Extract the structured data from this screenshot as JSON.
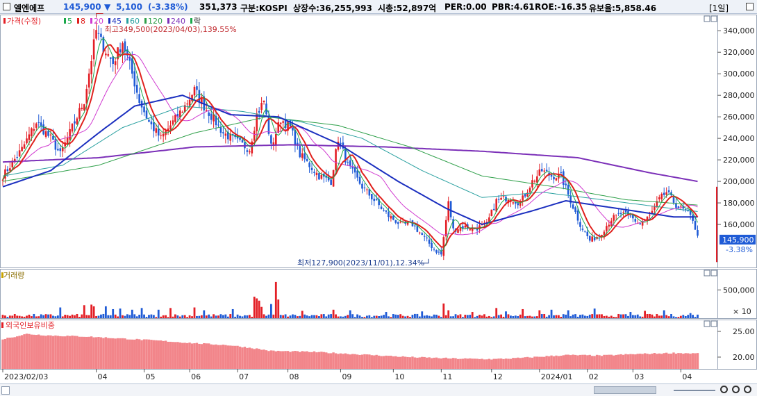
{
  "header": {
    "name": "엘엔에프",
    "price": "145,900",
    "change_arrow": "▼",
    "change": "5,100",
    "change_pct": "(-3.38%)",
    "volume": "351,373",
    "market": "구분:KOSPI",
    "shares": "상장수:36,255,993",
    "market_cap": "시총:52,897억",
    "per": "PER:0.00",
    "pbr": "PBR:4.61",
    "roe": "ROE:-16.35",
    "float_rate": "유보율:5,858.46",
    "period": "[1일]"
  },
  "colors": {
    "up": "#e31f26",
    "down": "#1f5bd6",
    "ma5": "#1aa84a",
    "ma8": "#e0201c",
    "ma20": "#d03ad0",
    "ma45": "#1b2fbf",
    "ma60": "#29a0a0",
    "ma120": "#2fa04a",
    "ma240": "#7b2fb8",
    "foreign": "#f2858a"
  },
  "chart_data": [
    {
      "type": "candlestick",
      "legend": {
        "title": "가격(수정)",
        "ma": [
          "5",
          "8",
          "20",
          "45",
          "60",
          "120",
          "240"
        ],
        "extra": "락"
      },
      "annotations": {
        "high": "최고349,500(2023/04/03),139.55%",
        "low": "최저127,900(2023/11/01),12.34%"
      },
      "last_price_label": "145,900",
      "last_change_label": "-3.38%",
      "ylim": [
        120000,
        355000
      ],
      "y_ticks": [
        160000,
        180000,
        200000,
        220000,
        240000,
        260000,
        280000,
        300000,
        320000,
        340000
      ],
      "y_tick_labels": [
        "160,000",
        "180,000",
        "200,000",
        "220,000",
        "240,000",
        "260,000",
        "280,000",
        "300,000",
        "320,000",
        "340,000"
      ],
      "x_labels": [
        "2023/02/03",
        "04",
        "05",
        "06",
        "07",
        "08",
        "09",
        "10",
        "11",
        "12",
        "2024/01",
        "02",
        "03",
        "04"
      ],
      "x_label_index": [
        0,
        39,
        59,
        78,
        98,
        119,
        141,
        163,
        183,
        204,
        224,
        244,
        263,
        283
      ],
      "anchors": [
        [
          0,
          205000
        ],
        [
          8,
          230000
        ],
        [
          14,
          255000
        ],
        [
          20,
          240000
        ],
        [
          24,
          225000
        ],
        [
          30,
          255000
        ],
        [
          34,
          275000
        ],
        [
          39,
          340000
        ],
        [
          42,
          325000
        ],
        [
          46,
          310000
        ],
        [
          50,
          330000
        ],
        [
          54,
          300000
        ],
        [
          57,
          275000
        ],
        [
          61,
          255000
        ],
        [
          66,
          240000
        ],
        [
          71,
          255000
        ],
        [
          76,
          270000
        ],
        [
          80,
          285000
        ],
        [
          84,
          270000
        ],
        [
          88,
          258000
        ],
        [
          92,
          245000
        ],
        [
          97,
          238000
        ],
        [
          103,
          230000
        ],
        [
          106,
          262000
        ],
        [
          109,
          275000
        ],
        [
          112,
          232000
        ],
        [
          116,
          258000
        ],
        [
          120,
          250000
        ],
        [
          124,
          225000
        ],
        [
          128,
          215000
        ],
        [
          132,
          205000
        ],
        [
          137,
          200000
        ],
        [
          140,
          240000
        ],
        [
          144,
          215000
        ],
        [
          150,
          195000
        ],
        [
          156,
          180000
        ],
        [
          161,
          168000
        ],
        [
          166,
          160000
        ],
        [
          171,
          160000
        ],
        [
          175,
          150000
        ],
        [
          180,
          137000
        ],
        [
          183,
          132000
        ],
        [
          186,
          180000
        ],
        [
          188,
          155000
        ],
        [
          192,
          158000
        ],
        [
          197,
          156000
        ],
        [
          202,
          160000
        ],
        [
          206,
          182000
        ],
        [
          211,
          185000
        ],
        [
          216,
          180000
        ],
        [
          221,
          200000
        ],
        [
          225,
          210000
        ],
        [
          229,
          205000
        ],
        [
          233,
          205000
        ],
        [
          237,
          182000
        ],
        [
          241,
          160000
        ],
        [
          245,
          145000
        ],
        [
          249,
          150000
        ],
        [
          254,
          165000
        ],
        [
          258,
          170000
        ],
        [
          262,
          167000
        ],
        [
          266,
          160000
        ],
        [
          270,
          168000
        ],
        [
          274,
          183000
        ],
        [
          277,
          190000
        ],
        [
          281,
          178000
        ],
        [
          285,
          172000
        ],
        [
          288,
          165000
        ],
        [
          290,
          148000
        ]
      ],
      "ma_levels": {
        "ma45": [
          [
            0,
            195000
          ],
          [
            20,
            210000
          ],
          [
            40,
            245000
          ],
          [
            55,
            270000
          ],
          [
            75,
            280000
          ],
          [
            95,
            262000
          ],
          [
            115,
            260000
          ],
          [
            140,
            235000
          ],
          [
            165,
            200000
          ],
          [
            185,
            175000
          ],
          [
            200,
            160000
          ],
          [
            220,
            172000
          ],
          [
            235,
            182000
          ],
          [
            250,
            177000
          ],
          [
            265,
            172000
          ],
          [
            280,
            167000
          ],
          [
            290,
            167000
          ]
        ],
        "ma60": [
          [
            0,
            205000
          ],
          [
            25,
            215000
          ],
          [
            50,
            250000
          ],
          [
            75,
            270000
          ],
          [
            100,
            265000
          ],
          [
            125,
            255000
          ],
          [
            150,
            240000
          ],
          [
            175,
            210000
          ],
          [
            200,
            185000
          ],
          [
            225,
            190000
          ],
          [
            250,
            183000
          ],
          [
            275,
            176000
          ],
          [
            290,
            172000
          ]
        ],
        "ma120": [
          [
            0,
            200000
          ],
          [
            40,
            215000
          ],
          [
            80,
            245000
          ],
          [
            110,
            260000
          ],
          [
            140,
            252000
          ],
          [
            170,
            232000
          ],
          [
            200,
            205000
          ],
          [
            230,
            195000
          ],
          [
            260,
            183000
          ],
          [
            290,
            178000
          ]
        ],
        "ma240": [
          [
            0,
            218000
          ],
          [
            40,
            222000
          ],
          [
            80,
            232000
          ],
          [
            120,
            234000
          ],
          [
            160,
            232000
          ],
          [
            200,
            228000
          ],
          [
            240,
            222000
          ],
          [
            270,
            208000
          ],
          [
            290,
            200000
          ]
        ]
      }
    },
    {
      "type": "bar",
      "title": "거래량",
      "y_tick_labels": [
        "500,000"
      ],
      "unit_label": "× 10",
      "ylim": [
        0,
        700000
      ],
      "spikes": [
        [
          24,
          190000
        ],
        [
          34,
          230000
        ],
        [
          37,
          240000
        ],
        [
          38,
          210000
        ],
        [
          43,
          210000
        ],
        [
          46,
          160000
        ],
        [
          49,
          170000
        ],
        [
          54,
          150000
        ],
        [
          58,
          180000
        ],
        [
          65,
          150000
        ],
        [
          70,
          180000
        ],
        [
          80,
          190000
        ],
        [
          84,
          140000
        ],
        [
          96,
          160000
        ],
        [
          105,
          380000
        ],
        [
          106,
          350000
        ],
        [
          107,
          310000
        ],
        [
          108,
          200000
        ],
        [
          112,
          250000
        ],
        [
          114,
          640000
        ],
        [
          115,
          330000
        ],
        [
          125,
          130000
        ],
        [
          138,
          150000
        ],
        [
          145,
          140000
        ],
        [
          160,
          110000
        ],
        [
          175,
          120000
        ],
        [
          184,
          260000
        ],
        [
          186,
          140000
        ],
        [
          196,
          110000
        ],
        [
          206,
          180000
        ],
        [
          210,
          120000
        ],
        [
          217,
          160000
        ],
        [
          224,
          140000
        ],
        [
          229,
          150000
        ],
        [
          236,
          140000
        ],
        [
          247,
          170000
        ],
        [
          262,
          110000
        ],
        [
          268,
          130000
        ],
        [
          276,
          140000
        ],
        [
          287,
          90000
        ]
      ]
    },
    {
      "type": "bar",
      "title": "외국인보유비중",
      "y_ticks": [
        20,
        25
      ],
      "y_tick_labels": [
        "20.00",
        "25.00"
      ],
      "ylim": [
        17.7,
        27.3
      ],
      "anchors": [
        [
          0,
          23.5
        ],
        [
          10,
          24.5
        ],
        [
          20,
          24.2
        ],
        [
          35,
          24.0
        ],
        [
          50,
          23.6
        ],
        [
          65,
          23.2
        ],
        [
          80,
          22.7
        ],
        [
          95,
          22.3
        ],
        [
          105,
          21.7
        ],
        [
          112,
          21.2
        ],
        [
          130,
          21.0
        ],
        [
          150,
          20.5
        ],
        [
          170,
          20.0
        ],
        [
          190,
          19.7
        ],
        [
          205,
          19.6
        ],
        [
          215,
          19.8
        ],
        [
          225,
          20.1
        ],
        [
          235,
          20.4
        ],
        [
          250,
          20.3
        ],
        [
          265,
          20.6
        ],
        [
          280,
          20.8
        ],
        [
          290,
          20.7
        ]
      ]
    }
  ]
}
